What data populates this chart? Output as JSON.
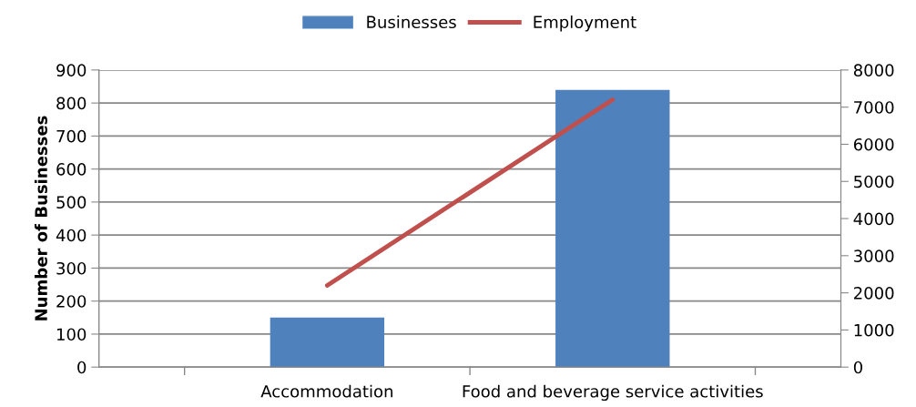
{
  "chart_data": {
    "type": "bar",
    "ylabel": "Number of Businesses",
    "categories": [
      "Accommodation",
      "Food and beverage service activities"
    ],
    "series": [
      {
        "name": "Businesses",
        "color": "#4f81bd",
        "values": [
          150,
          840
        ]
      },
      {
        "name": "Employment",
        "color": "#c0504d",
        "type": "line",
        "axis": "y2",
        "values": [
          2200,
          7200
        ]
      }
    ],
    "ylim": [
      0,
      900
    ],
    "yticks": [
      0,
      100,
      200,
      300,
      400,
      500,
      600,
      700,
      800,
      900
    ],
    "y2lim": [
      0,
      8000
    ],
    "y2ticks": [
      0,
      1000,
      2000,
      3000,
      4000,
      5000,
      6000,
      7000,
      8000
    ],
    "grid": "y",
    "legend": "top",
    "marker": "none",
    "line_style": "solid"
  }
}
